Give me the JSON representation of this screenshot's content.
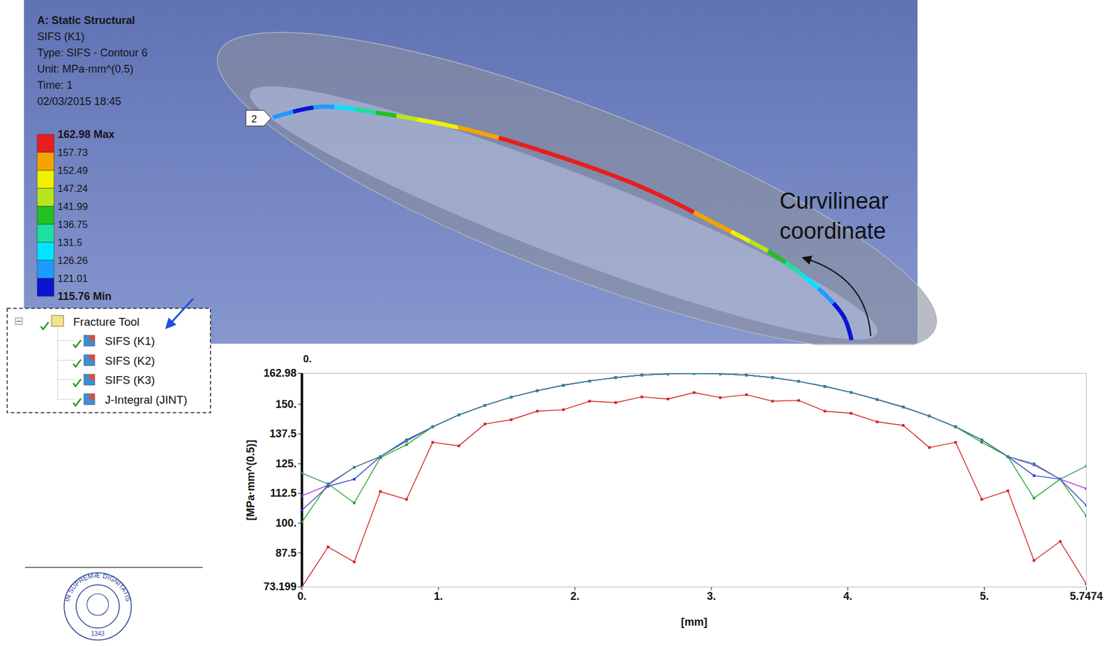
{
  "header": {
    "title": "A: Static Structural",
    "lines": [
      "SIFS (K1)",
      "Type: SIFS - Contour 6",
      "Unit: MPa·mm^(0.5)",
      "Time: 1",
      "02/03/2015 18:45"
    ]
  },
  "contour_legend": {
    "ticks": [
      {
        "value": 162.98,
        "label": "162.98 Max"
      },
      157.73,
      152.49,
      147.24,
      141.99,
      136.75,
      131.5,
      126.26,
      121.01,
      {
        "value": 115.76,
        "label": "115.76 Min"
      }
    ],
    "colors": [
      "#e81e1e",
      "#f5a300",
      "#f0f000",
      "#b5e61d",
      "#22c022",
      "#1ee0a0",
      "#00e5ff",
      "#1e9bff",
      "#0a14d0"
    ]
  },
  "model": {
    "crack_front_label": "2",
    "annotation": "Curvilinear coordinate"
  },
  "tree": {
    "root": "Fracture Tool",
    "items": [
      "SIFS (K1)",
      "SIFS (K2)",
      "SIFS (K3)",
      "J-Integral (JINT)"
    ]
  },
  "logo": {
    "text": "IN SUPREMÆ DIGNITATIS",
    "year": "1343"
  },
  "chart_data": {
    "type": "line",
    "xlabel": "[mm]",
    "ylabel": "[MPa·mm^(0.5)]",
    "corner_label": "0.",
    "marker": "square",
    "line_style": "solid",
    "grid": false,
    "x": [
      0,
      0.1916,
      0.3832,
      0.5747,
      0.7663,
      0.9579,
      1.1495,
      1.3411,
      1.5326,
      1.7242,
      1.9158,
      2.1074,
      2.299,
      2.4905,
      2.6821,
      2.8737,
      3.0653,
      3.2569,
      3.4484,
      3.64,
      3.8316,
      4.0232,
      4.2148,
      4.4063,
      4.5979,
      4.7895,
      4.9811,
      5.1727,
      5.3642,
      5.5558,
      5.7474
    ],
    "series": [
      {
        "color": "#d42020",
        "values": [
          73.2,
          90,
          83.7,
          113.3,
          110,
          134,
          132.5,
          141.7,
          143.5,
          147.1,
          147.7,
          151.3,
          150.7,
          153.1,
          152.2,
          154.9,
          152.8,
          154,
          151.3,
          151.6,
          147.1,
          146.2,
          142.6,
          141.1,
          131.8,
          134,
          110,
          113.6,
          84.3,
          92.3,
          74.4
        ]
      },
      {
        "color": "#22a022",
        "values": [
          100.5,
          116.5,
          108.5,
          127.5,
          133,
          140.5,
          145.5,
          149.5,
          153,
          155.7,
          158,
          159.8,
          161.2,
          162.3,
          162.8,
          162.98,
          162.8,
          162.3,
          161.2,
          159.6,
          157.5,
          155,
          152,
          148.8,
          145,
          140.5,
          134,
          128,
          110.5,
          118.5,
          103
        ]
      },
      {
        "color": "#2a3fd0",
        "values": [
          105.5,
          115.5,
          118.5,
          128,
          135,
          140.5,
          145.5,
          149.5,
          153,
          155.7,
          158,
          159.8,
          161.2,
          162.3,
          162.8,
          162.98,
          162.8,
          162.3,
          161.2,
          159.6,
          157.5,
          155,
          152,
          148.8,
          145,
          140.5,
          135,
          128,
          120,
          118.5,
          107.5
        ]
      },
      {
        "color": "#a030e0",
        "values": [
          111.5,
          116,
          123.5,
          128,
          134.5,
          140.5,
          145.5,
          149.5,
          153,
          155.7,
          158,
          159.8,
          161.2,
          162.3,
          162.8,
          162.98,
          162.8,
          162.3,
          161.2,
          159.6,
          157.5,
          155,
          152,
          148.8,
          145,
          140.5,
          135,
          128,
          124.5,
          118.5,
          114.5
        ]
      },
      {
        "color": "#2e8b8b",
        "values": [
          121,
          116.5,
          123.5,
          128,
          134.5,
          140.5,
          145.5,
          149.5,
          153,
          155.7,
          158,
          159.8,
          161.2,
          162.3,
          162.8,
          162.98,
          162.8,
          162.3,
          161.2,
          159.6,
          157.5,
          155,
          152,
          148.8,
          145,
          140.5,
          135,
          128,
          125,
          118.5,
          124
        ]
      }
    ],
    "xlim": [
      0,
      5.7474
    ],
    "ylim": [
      73.199,
      162.98
    ],
    "xticks": [
      {
        "value": 0,
        "label": "0."
      },
      {
        "value": 1,
        "label": "1."
      },
      {
        "value": 2,
        "label": "2."
      },
      {
        "value": 3,
        "label": "3."
      },
      {
        "value": 4,
        "label": "4."
      },
      {
        "value": 5,
        "label": "5."
      },
      5.7474
    ],
    "yticks": [
      73.199,
      87.5,
      {
        "value": 100,
        "label": "100."
      },
      112.5,
      {
        "value": 125,
        "label": "125."
      },
      137.5,
      {
        "value": 150,
        "label": "150."
      },
      162.98
    ]
  }
}
